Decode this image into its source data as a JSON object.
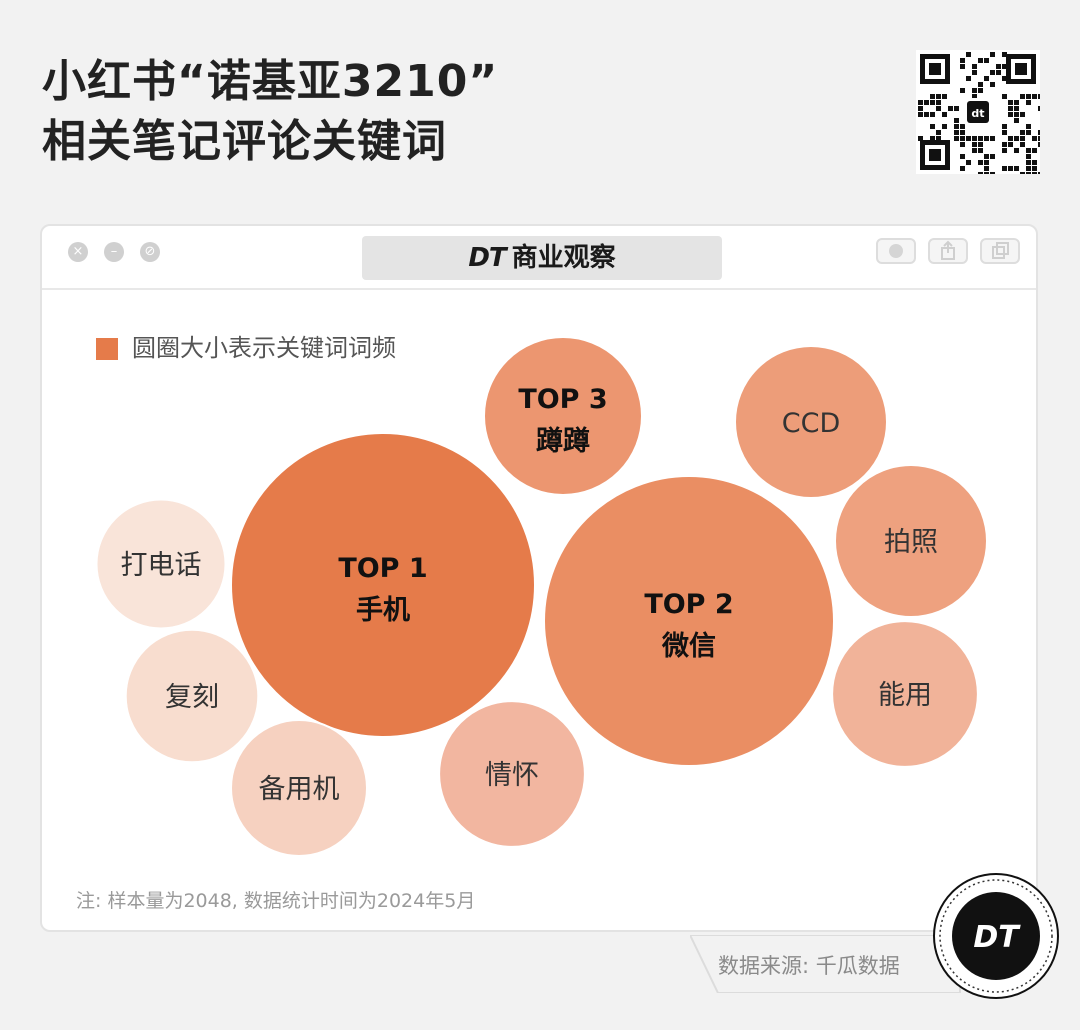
{
  "header": {
    "title_line1": "小红书“诺基亚3210”",
    "title_line2": "相关笔记评论关键词"
  },
  "window": {
    "brand_mark": "DT",
    "brand_name": "商业观察"
  },
  "legend": {
    "label": "圆圈大小表示关键词词频"
  },
  "chart_data": {
    "type": "bubble",
    "title": "小红书“诺基亚3210”相关笔记评论关键词",
    "size_meaning": "圆圈大小表示关键词词频",
    "bubbles": [
      {
        "keyword": "手机",
        "rank": "TOP 1",
        "size": 1.0
      },
      {
        "keyword": "微信",
        "rank": "TOP 2",
        "size": 0.91
      },
      {
        "keyword": "蹲蹲",
        "rank": "TOP 3",
        "size": 0.27
      },
      {
        "keyword": "CCD",
        "rank": "",
        "size": 0.25
      },
      {
        "keyword": "拍照",
        "rank": "",
        "size": 0.25
      },
      {
        "keyword": "能用",
        "rank": "",
        "size": 0.23
      },
      {
        "keyword": "情怀",
        "rank": "",
        "size": 0.23
      },
      {
        "keyword": "备用机",
        "rank": "",
        "size": 0.2
      },
      {
        "keyword": "复刻",
        "rank": "",
        "size": 0.19
      },
      {
        "keyword": "打电话",
        "rank": "",
        "size": 0.18
      }
    ],
    "colors": [
      "#e57b4a",
      "#ea8e63",
      "#ec9670",
      "#ed9d79",
      "#eea17f",
      "#f1b399",
      "#f2b6a0",
      "#f6d1c0",
      "#f8ddcf",
      "#f9e4d9"
    ]
  },
  "footnote": "注: 样本量为2048, 数据统计时间为2024年5月",
  "source": "数据来源: 千瓜数据",
  "logo_text": "DT"
}
